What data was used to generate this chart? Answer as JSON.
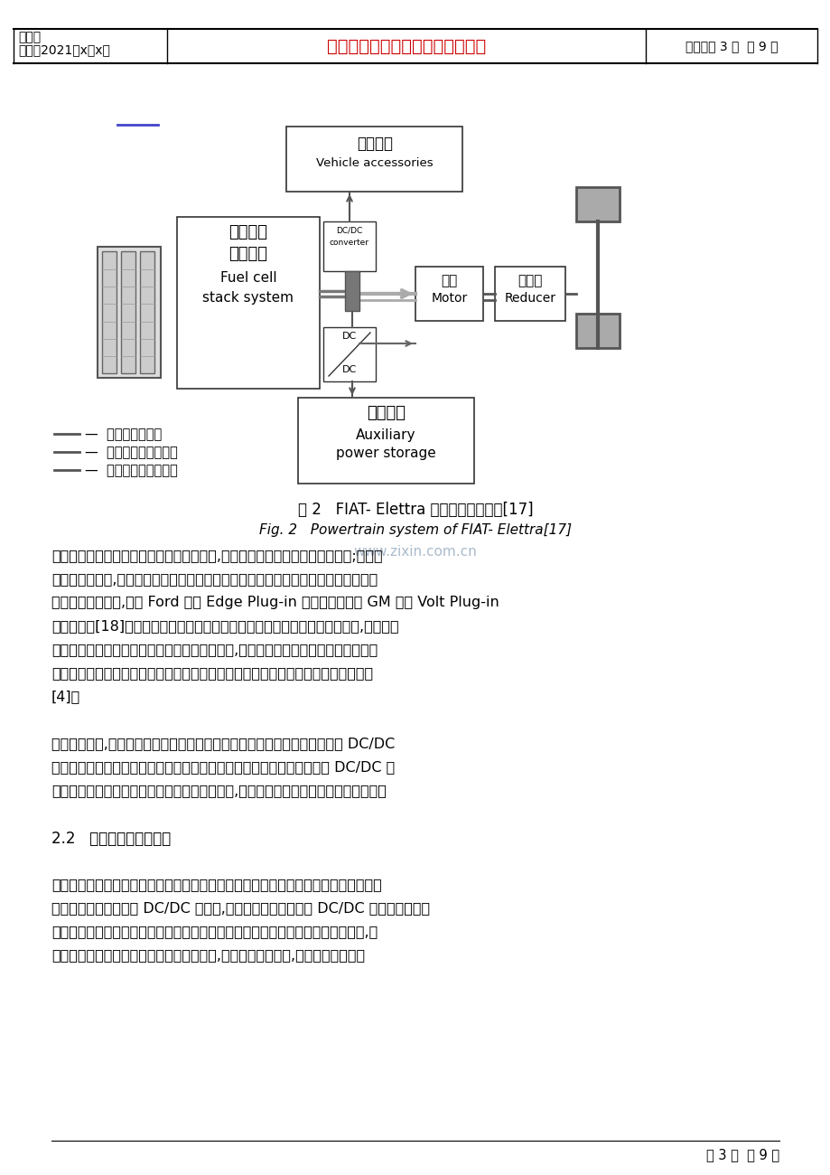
{
  "bg_color": "#ffffff",
  "header": {
    "line1_left": "编号：",
    "line2_left": "时间：2021年x月x日",
    "center_text": "书山有路勤为径，学海无涯苦作舟",
    "center_color": "#cc0000",
    "right_text": "页码：第 3 页  共 9 页",
    "font_size": 11
  },
  "figure_caption_cn": "图 2   FIAT- Elettra 动力传动系统结构[17]",
  "figure_caption_en": "Fig. 2   Powertrain system of FIAT- Elettra[17]",
  "watermark": "www.zixin.com.cn",
  "body_paragraphs": [
    "辅助动力装置扩充了动力系统总的能量容量,增加了车辆一次加氢后的续驶里程;扩大了系统的功率范围,减轻了燃料电池承担的功率负荷。许多插电混合的燃料电池汽车也经常采用这样的构架,美国 Ford 公司 Edge Plug-in 燃料电池轿车和 GM 公司 Volt Plug-in 燃料电池车[18]。这种插电式混合动力汽车将有效的减少氢燃料的消耗。另外,辅助动力装置的存在使得系统具备了回收制动能量的能力,并且增加了系统运行的可靠性。燃料电池和辅助动力装置之间对负载功率的合理分配还可以提高燃料电池的总体运行效率[4]。",
    "在系统设计中,可以在辅助动力装置和动力系统直流母线之间添加了一个双向 DC/DC 变换器。使得对辅助动力装置放电的控制更加灵活、易于实现。由于双向 DC/DC 变换器可以较好地控制辅助动力装置的电压或电流,因此它还是系统控制策略的执行部件。",
    "2.2   并联式动力系统结构",
    "另一种构架是并联式的燃料电池混合动力系统的结构。这种构建通常在燃料电池和电机控制器之间安装了一个 DC/DC 变换器,燃料电池的端电压通过 DC/DC 变换器的升压或降压来与系统直流母线的电压等级进行匹配。这种系统与上述构架不同之处还在于,这种动力系统的设计没有考虑能量的回馈回收,因此系统虽然简单,但效率比较低下。"
  ],
  "footer_text": "第 3 页  共 9 页"
}
